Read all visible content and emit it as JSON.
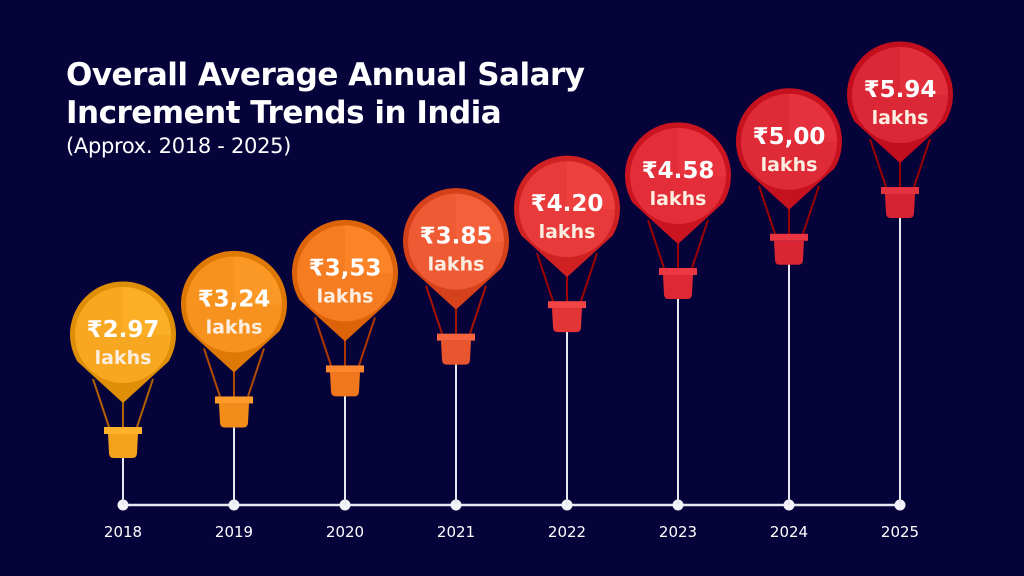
{
  "header": {
    "title_line1": "Overall Average Annual Salary",
    "title_line2": "Increment Trends in India",
    "subtitle": "(Approx. 2018 - 2025)"
  },
  "chart_data": {
    "type": "line",
    "style": "hot-air-balloon infographic",
    "title": "Overall Average Annual Salary Increment Trends in India",
    "subtitle": "(Approx. 2018 - 2025)",
    "xlabel": "",
    "ylabel": "",
    "unit": "lakhs",
    "currency_symbol": "₹",
    "categories": [
      "2018",
      "2019",
      "2020",
      "2021",
      "2022",
      "2023",
      "2024",
      "2025"
    ],
    "values": [
      2.97,
      3.24,
      3.53,
      3.85,
      4.2,
      4.58,
      5.0,
      5.94
    ],
    "value_labels": [
      "₹2.97",
      "₹3,24",
      "₹3,53",
      "₹3.85",
      "₹4.20",
      "₹4.58",
      "₹5,00",
      "₹5.94"
    ],
    "unit_label": "lakhs",
    "balloon_colors": [
      "#f7a820",
      "#f8921f",
      "#f67c22",
      "#ee5a33",
      "#e83a3a",
      "#e32e3a",
      "#df2a38",
      "#dc2836"
    ],
    "grid": false,
    "legend": "none"
  }
}
